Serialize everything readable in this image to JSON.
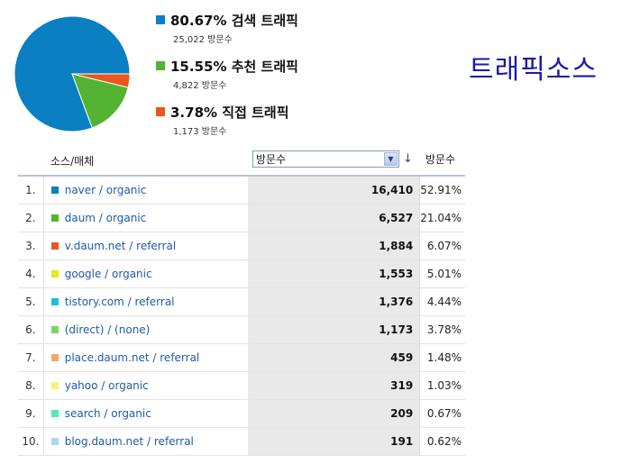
{
  "title": "트래픽소스",
  "legend": [
    {
      "percent": "80.67%",
      "label": "검색 트래픽",
      "visits": "25,022 방문수",
      "color": "#0a7fc2"
    },
    {
      "percent": "15.55%",
      "label": "추천 트래픽",
      "visits": "4,822 방문수",
      "color": "#52b432"
    },
    {
      "percent": "3.78%",
      "label": "직접 트래픽",
      "visits": "1,173 방문수",
      "color": "#e8581c"
    }
  ],
  "table": {
    "headers": {
      "source": "소스/매체",
      "metric_select": "방문수",
      "percent": "방문수"
    },
    "rows": [
      {
        "rank": "1.",
        "source": "naver / organic",
        "visits": "16,410",
        "percent": "52.91%",
        "color": "#0a7fc2"
      },
      {
        "rank": "2.",
        "source": "daum / organic",
        "visits": "6,527",
        "percent": "21.04%",
        "color": "#52b432"
      },
      {
        "rank": "3.",
        "source": "v.daum.net / referral",
        "visits": "1,884",
        "percent": "6.07%",
        "color": "#e8581c"
      },
      {
        "rank": "4.",
        "source": "google / organic",
        "visits": "1,553",
        "percent": "5.01%",
        "color": "#e8e81a"
      },
      {
        "rank": "5.",
        "source": "tistory.com / referral",
        "visits": "1,376",
        "percent": "4.44%",
        "color": "#23bcd8"
      },
      {
        "rank": "6.",
        "source": "(direct) / (none)",
        "visits": "1,173",
        "percent": "3.78%",
        "color": "#7ad662"
      },
      {
        "rank": "7.",
        "source": "place.daum.net / referral",
        "visits": "459",
        "percent": "1.48%",
        "color": "#f7a46a"
      },
      {
        "rank": "8.",
        "source": "yahoo / organic",
        "visits": "319",
        "percent": "1.03%",
        "color": "#f6f27a"
      },
      {
        "rank": "9.",
        "source": "search / organic",
        "visits": "209",
        "percent": "0.67%",
        "color": "#56e8b4"
      },
      {
        "rank": "10.",
        "source": "blog.daum.net / referral",
        "visits": "191",
        "percent": "0.62%",
        "color": "#a9d8f2"
      }
    ]
  },
  "chart_data": {
    "type": "pie",
    "categories": [
      "검색 트래픽",
      "추천 트래픽",
      "직접 트래픽"
    ],
    "values": [
      80.67,
      15.55,
      3.78
    ],
    "colors": [
      "#0a7fc2",
      "#52b432",
      "#e8581c"
    ]
  }
}
